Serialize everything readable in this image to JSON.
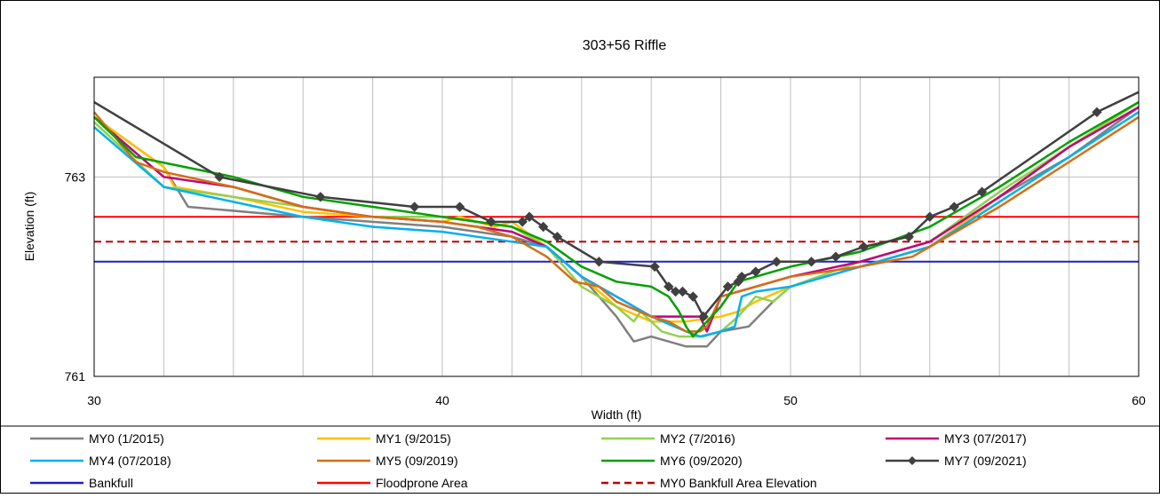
{
  "chart_data": {
    "type": "line",
    "title": "303+56 Riffle",
    "xlabel": "Width (ft)",
    "ylabel": "Elevation (ft)",
    "xlim": [
      30,
      60
    ],
    "ylim": [
      761,
      764
    ],
    "x_ticks": [
      30,
      40,
      50,
      60
    ],
    "y_ticks": [
      761,
      763
    ],
    "x_gridlines": [
      32,
      34,
      36,
      38,
      40,
      42,
      44,
      46,
      48,
      50,
      52,
      54,
      56,
      58
    ],
    "y_gridlines": [
      763
    ],
    "grid": true,
    "legend_position": "bottom",
    "series": [
      {
        "name": "MY0 (1/2015)",
        "color": "#808080",
        "dash": "",
        "marker": "none",
        "points": [
          [
            30,
            763.6
          ],
          [
            32,
            763.1
          ],
          [
            32.7,
            762.7
          ],
          [
            36,
            762.6
          ],
          [
            38,
            762.55
          ],
          [
            40,
            762.5
          ],
          [
            42,
            762.4
          ],
          [
            43,
            762.3
          ],
          [
            44,
            762.0
          ],
          [
            45,
            761.6
          ],
          [
            45.5,
            761.35
          ],
          [
            46,
            761.4
          ],
          [
            47,
            761.3
          ],
          [
            47.6,
            761.3
          ],
          [
            48,
            761.45
          ],
          [
            48.8,
            761.5
          ],
          [
            49.5,
            761.75
          ],
          [
            50,
            761.9
          ],
          [
            52,
            762.1
          ],
          [
            54,
            762.3
          ],
          [
            56,
            762.8
          ],
          [
            58,
            763.2
          ],
          [
            60,
            763.7
          ]
        ]
      },
      {
        "name": "MY1 (9/2015)",
        "color": "#FFC000",
        "dash": "",
        "marker": "none",
        "points": [
          [
            30,
            763.6
          ],
          [
            32,
            763.1
          ],
          [
            32.3,
            762.9
          ],
          [
            34,
            762.8
          ],
          [
            36,
            762.65
          ],
          [
            38,
            762.6
          ],
          [
            40,
            762.55
          ],
          [
            40.5,
            762.6
          ],
          [
            41.5,
            762.5
          ],
          [
            42,
            762.55
          ],
          [
            43,
            762.3
          ],
          [
            44,
            762.0
          ],
          [
            44.5,
            761.85
          ],
          [
            45,
            761.7
          ],
          [
            46,
            761.55
          ],
          [
            47,
            761.55
          ],
          [
            48,
            761.6
          ],
          [
            48.5,
            761.65
          ],
          [
            49,
            761.75
          ],
          [
            50,
            761.9
          ],
          [
            52,
            762.1
          ],
          [
            54,
            762.3
          ],
          [
            56,
            762.8
          ],
          [
            58,
            763.3
          ],
          [
            60,
            763.75
          ]
        ]
      },
      {
        "name": "MY2 (7/2016)",
        "color": "#92D050",
        "dash": "",
        "marker": "none",
        "points": [
          [
            30,
            763.55
          ],
          [
            32,
            762.9
          ],
          [
            34,
            762.8
          ],
          [
            36,
            762.7
          ],
          [
            38,
            762.6
          ],
          [
            40,
            762.6
          ],
          [
            41,
            762.55
          ],
          [
            42,
            762.5
          ],
          [
            43,
            762.3
          ],
          [
            44,
            761.9
          ],
          [
            45,
            761.7
          ],
          [
            45.5,
            761.55
          ],
          [
            45.7,
            761.65
          ],
          [
            46.3,
            761.45
          ],
          [
            46.8,
            761.4
          ],
          [
            47.5,
            761.4
          ],
          [
            48,
            761.45
          ],
          [
            48.5,
            761.6
          ],
          [
            49,
            761.8
          ],
          [
            49.5,
            761.75
          ],
          [
            50,
            761.9
          ],
          [
            52,
            762.15
          ],
          [
            54,
            762.35
          ],
          [
            56,
            762.85
          ],
          [
            58,
            763.3
          ],
          [
            60,
            763.75
          ]
        ]
      },
      {
        "name": "MY3 (07/2017)",
        "color": "#C0007A",
        "dash": "",
        "marker": "none",
        "points": [
          [
            30,
            763.6
          ],
          [
            32,
            763.0
          ],
          [
            34,
            762.9
          ],
          [
            36,
            762.7
          ],
          [
            38,
            762.6
          ],
          [
            40,
            762.55
          ],
          [
            41,
            762.5
          ],
          [
            42,
            762.45
          ],
          [
            43,
            762.3
          ],
          [
            44,
            762.0
          ],
          [
            45,
            761.8
          ],
          [
            46,
            761.6
          ],
          [
            47,
            761.6
          ],
          [
            47.4,
            761.6
          ],
          [
            47.6,
            761.45
          ],
          [
            48,
            761.8
          ],
          [
            49,
            761.9
          ],
          [
            50,
            762.0
          ],
          [
            52,
            762.15
          ],
          [
            54,
            762.35
          ],
          [
            56,
            762.8
          ],
          [
            58,
            763.3
          ],
          [
            60,
            763.7
          ]
        ]
      },
      {
        "name": "MY4 (07/2018)",
        "color": "#00B0F0",
        "dash": "",
        "marker": "none",
        "points": [
          [
            30,
            763.5
          ],
          [
            32,
            762.9
          ],
          [
            34,
            762.75
          ],
          [
            36,
            762.6
          ],
          [
            38,
            762.5
          ],
          [
            40,
            762.45
          ],
          [
            41,
            762.4
          ],
          [
            42,
            762.35
          ],
          [
            43,
            762.3
          ],
          [
            44,
            762.0
          ],
          [
            45,
            761.8
          ],
          [
            46,
            761.6
          ],
          [
            47,
            761.45
          ],
          [
            47.4,
            761.4
          ],
          [
            48,
            761.45
          ],
          [
            48.4,
            761.5
          ],
          [
            48.6,
            761.8
          ],
          [
            49,
            761.85
          ],
          [
            50,
            761.9
          ],
          [
            52,
            762.1
          ],
          [
            54,
            762.3
          ],
          [
            56,
            762.75
          ],
          [
            58,
            763.2
          ],
          [
            60,
            763.65
          ]
        ]
      },
      {
        "name": "MY5 (09/2019)",
        "color": "#D46E16",
        "dash": "",
        "marker": "none",
        "points": [
          [
            30,
            763.65
          ],
          [
            31.2,
            763.15
          ],
          [
            32,
            763.05
          ],
          [
            34,
            762.9
          ],
          [
            36,
            762.7
          ],
          [
            38,
            762.6
          ],
          [
            40,
            762.55
          ],
          [
            41,
            762.5
          ],
          [
            42,
            762.4
          ],
          [
            43,
            762.2
          ],
          [
            43.8,
            761.95
          ],
          [
            44.5,
            761.9
          ],
          [
            45,
            761.75
          ],
          [
            46,
            761.6
          ],
          [
            46.5,
            761.55
          ],
          [
            47,
            761.45
          ],
          [
            47.4,
            761.45
          ],
          [
            47.6,
            761.5
          ],
          [
            48,
            761.8
          ],
          [
            48.5,
            761.85
          ],
          [
            49,
            761.9
          ],
          [
            50,
            762.0
          ],
          [
            52,
            762.1
          ],
          [
            53.5,
            762.2
          ],
          [
            54,
            762.3
          ],
          [
            56,
            762.7
          ],
          [
            58,
            763.15
          ],
          [
            60,
            763.6
          ]
        ]
      },
      {
        "name": "MY6 (09/2020)",
        "color": "#00A000",
        "dash": "",
        "marker": "none",
        "points": [
          [
            30,
            763.6
          ],
          [
            31.2,
            763.2
          ],
          [
            34,
            763.0
          ],
          [
            36,
            762.8
          ],
          [
            38,
            762.7
          ],
          [
            40,
            762.6
          ],
          [
            41,
            762.55
          ],
          [
            42,
            762.5
          ],
          [
            43,
            762.35
          ],
          [
            44,
            762.1
          ],
          [
            45,
            761.95
          ],
          [
            46,
            761.9
          ],
          [
            46.5,
            761.8
          ],
          [
            46.8,
            761.65
          ],
          [
            47,
            761.5
          ],
          [
            47.2,
            761.4
          ],
          [
            47.6,
            761.55
          ],
          [
            48,
            761.7
          ],
          [
            48.5,
            761.95
          ],
          [
            49,
            762.0
          ],
          [
            50,
            762.1
          ],
          [
            52,
            762.25
          ],
          [
            54,
            762.5
          ],
          [
            56,
            762.9
          ],
          [
            58,
            763.35
          ],
          [
            60,
            763.75
          ]
        ]
      },
      {
        "name": "MY7 (09/2021)",
        "color": "#404040",
        "dash": "",
        "marker": "diamond",
        "points": [
          [
            30,
            763.75
          ],
          [
            33.6,
            763.0
          ],
          [
            36.5,
            762.8
          ],
          [
            39.2,
            762.7
          ],
          [
            40.5,
            762.7
          ],
          [
            41.4,
            762.55
          ],
          [
            42.3,
            762.55
          ],
          [
            42.5,
            762.6
          ],
          [
            42.9,
            762.5
          ],
          [
            43.3,
            762.4
          ],
          [
            44.5,
            762.15
          ],
          [
            46.1,
            762.1
          ],
          [
            46.5,
            761.9
          ],
          [
            46.7,
            761.85
          ],
          [
            46.9,
            761.85
          ],
          [
            47.2,
            761.8
          ],
          [
            47.5,
            761.6
          ],
          [
            48.2,
            761.9
          ],
          [
            48.5,
            761.95
          ],
          [
            48.6,
            762.0
          ],
          [
            49.0,
            762.05
          ],
          [
            49.6,
            762.15
          ],
          [
            50.6,
            762.15
          ],
          [
            51.3,
            762.2
          ],
          [
            52.1,
            762.3
          ],
          [
            53.4,
            762.4
          ],
          [
            54.0,
            762.6
          ],
          [
            54.7,
            762.7
          ],
          [
            55.5,
            762.85
          ],
          [
            58.8,
            763.65
          ],
          [
            60,
            763.85
          ]
        ]
      },
      {
        "name": "Bankfull",
        "color": "#2020C0",
        "dash": "",
        "marker": "none",
        "points": [
          [
            30,
            762.15
          ],
          [
            60,
            762.15
          ]
        ]
      },
      {
        "name": "Floodprone Area",
        "color": "#FF0000",
        "dash": "",
        "marker": "none",
        "points": [
          [
            30,
            762.6
          ],
          [
            60,
            762.6
          ]
        ]
      },
      {
        "name": "MY0 Bankfull Area Elevation",
        "color": "#C00000",
        "dash": "8,5",
        "marker": "none",
        "points": [
          [
            30,
            762.35
          ],
          [
            60,
            762.35
          ]
        ]
      }
    ]
  }
}
